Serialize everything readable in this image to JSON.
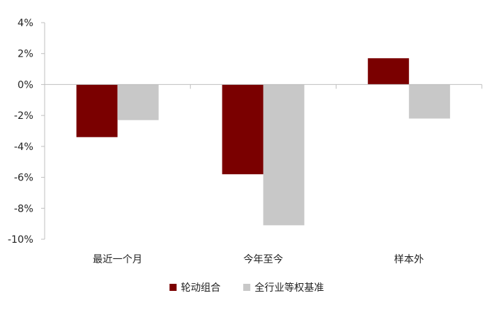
{
  "chart_data": {
    "type": "bar",
    "categories": [
      "最近一个月",
      "今年至今",
      "样本外"
    ],
    "series": [
      {
        "name": "轮动组合",
        "values": [
          -3.4,
          -5.8,
          1.7
        ],
        "color": "#7a0000"
      },
      {
        "name": "全行业等权基准",
        "values": [
          -2.3,
          -9.1,
          -2.2
        ],
        "color": "#c8c8c8"
      }
    ],
    "ylim": [
      -10,
      4
    ],
    "yticks": [
      {
        "value": 4,
        "label": "4%"
      },
      {
        "value": 2,
        "label": "2%"
      },
      {
        "value": 0,
        "label": "0%"
      },
      {
        "value": -2,
        "label": "-2%"
      },
      {
        "value": -4,
        "label": "-4%"
      },
      {
        "value": -6,
        "label": "-6%"
      },
      {
        "value": -8,
        "label": "-8%"
      },
      {
        "value": -10,
        "label": "-10%"
      }
    ],
    "grid": false,
    "legend_position": "bottom-center",
    "axis_color": "#bfbfbf"
  }
}
